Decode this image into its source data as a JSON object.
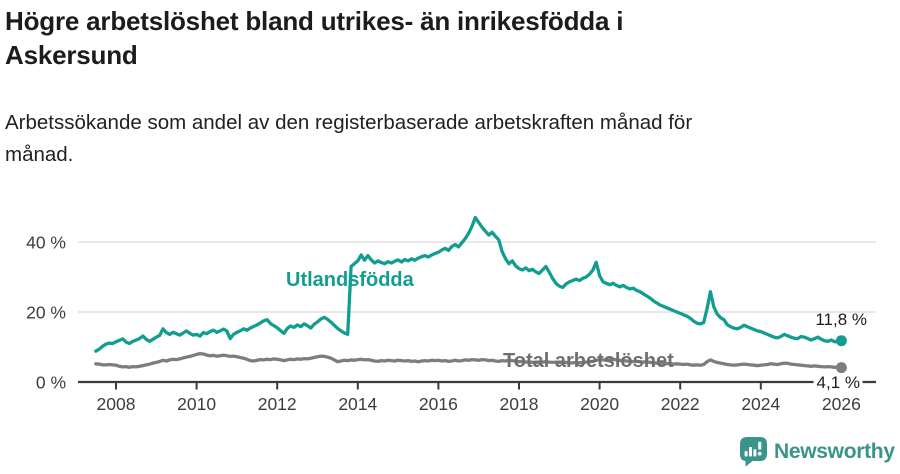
{
  "header": {
    "title_lines": [
      "Högre arbetslöshet bland utrikes- än inrikesfödda i",
      "Askersund"
    ],
    "subtitle_lines": [
      "Arbetssökande som andel av den registerbaserade arbetskraften månad för",
      "månad."
    ]
  },
  "chart_data": {
    "type": "line",
    "title": "Högre arbetslöshet bland utrikes- än inrikesfödda i Askersund",
    "subtitle": "Arbetssökande som andel av den registerbaserade arbetskraften månad för månad.",
    "unit": "%",
    "frequency": "monthly",
    "start": {
      "year": 2007,
      "month": 7
    },
    "x_axis": {
      "ticks": [
        2008,
        2010,
        2012,
        2014,
        2016,
        2018,
        2020,
        2022,
        2024,
        2026
      ]
    },
    "y_axis": {
      "range": [
        0,
        50
      ],
      "ticks": [
        {
          "label": "0 %",
          "value": 0
        },
        {
          "label": "20 %",
          "value": 20
        },
        {
          "label": "40 %",
          "value": 40
        }
      ]
    },
    "grid": "horizontal",
    "style": {
      "grid_color": "#d9d9d9",
      "axis_color": "#3b3b3b",
      "tick_text_color": "#3d3d3d"
    },
    "series": [
      {
        "name": "Utlandsfödda",
        "color": "#119d8f",
        "end_label": "11,8 %",
        "last_value": 11.8,
        "values": [
          8.8,
          9.4,
          10.2,
          10.8,
          11.1,
          11.0,
          11.5,
          11.9,
          12.3,
          11.4,
          11.0,
          11.6,
          12.0,
          12.4,
          13.1,
          12.2,
          11.6,
          12.2,
          12.8,
          13.3,
          15.2,
          14.1,
          13.6,
          14.2,
          13.8,
          13.4,
          14.0,
          14.6,
          13.9,
          13.4,
          13.6,
          13.1,
          14.1,
          13.8,
          14.4,
          14.8,
          14.2,
          14.6,
          15.1,
          14.6,
          12.4,
          13.6,
          14.2,
          14.6,
          15.2,
          14.8,
          15.4,
          15.9,
          16.3,
          16.9,
          17.5,
          17.8,
          16.7,
          16.1,
          15.5,
          14.7,
          13.9,
          15.3,
          16.0,
          15.6,
          16.3,
          15.8,
          16.6,
          16.1,
          15.4,
          16.5,
          17.2,
          18.0,
          18.5,
          17.9,
          17.1,
          16.2,
          15.3,
          14.6,
          14.0,
          13.6,
          33.0,
          33.8,
          34.6,
          36.3,
          34.8,
          36.1,
          34.9,
          34.0,
          34.6,
          34.1,
          33.8,
          34.4,
          34.0,
          34.5,
          34.9,
          34.3,
          35.0,
          34.6,
          35.2,
          34.8,
          35.4,
          35.8,
          36.1,
          35.7,
          36.3,
          36.7,
          37.1,
          37.7,
          38.2,
          37.6,
          38.7,
          39.3,
          38.6,
          39.8,
          41.0,
          42.5,
          44.5,
          47.0,
          45.6,
          44.2,
          43.1,
          42.0,
          42.8,
          41.6,
          40.6,
          37.2,
          35.2,
          33.8,
          34.6,
          33.2,
          32.4,
          32.0,
          32.6,
          31.8,
          32.2,
          31.5,
          31.0,
          32.0,
          33.0,
          31.4,
          29.6,
          28.2,
          27.4,
          27.0,
          28.0,
          28.6,
          29.0,
          29.4,
          29.0,
          29.6,
          30.0,
          30.8,
          32.0,
          34.2,
          30.4,
          28.6,
          28.2,
          27.8,
          28.2,
          27.6,
          27.2,
          27.6,
          27.0,
          26.6,
          26.8,
          26.2,
          25.8,
          25.2,
          24.6,
          24.0,
          23.2,
          22.6,
          22.0,
          21.6,
          21.2,
          20.8,
          20.4,
          20.0,
          19.6,
          19.2,
          18.8,
          18.2,
          17.4,
          16.8,
          16.6,
          17.0,
          21.0,
          25.8,
          21.5,
          19.5,
          18.4,
          17.8,
          16.4,
          15.8,
          15.4,
          15.2,
          15.6,
          16.2,
          15.8,
          15.4,
          15.0,
          14.6,
          14.4,
          14.0,
          13.6,
          13.2,
          12.8,
          12.6,
          13.0,
          13.6,
          13.2,
          12.8,
          12.5,
          12.4,
          13.0,
          12.8,
          12.4,
          12.0,
          12.4,
          12.8,
          12.2,
          11.8,
          11.6,
          12.0,
          11.5,
          11.6,
          11.8
        ]
      },
      {
        "name": "Total arbetslöshet",
        "color": "#7d7d7d",
        "label_color": "#6f6f6f",
        "end_label": "4,1 %",
        "last_value": 4.1,
        "values": [
          5.2,
          5.1,
          4.9,
          4.9,
          5.0,
          4.9,
          4.8,
          4.5,
          4.3,
          4.4,
          4.2,
          4.4,
          4.3,
          4.5,
          4.7,
          4.9,
          5.1,
          5.4,
          5.6,
          5.9,
          6.2,
          6.0,
          6.3,
          6.5,
          6.4,
          6.6,
          6.9,
          7.1,
          7.3,
          7.6,
          7.9,
          8.1,
          8.0,
          7.7,
          7.5,
          7.6,
          7.4,
          7.5,
          7.7,
          7.5,
          7.3,
          7.4,
          7.2,
          7.0,
          6.8,
          6.5,
          6.1,
          6.0,
          6.2,
          6.4,
          6.3,
          6.5,
          6.4,
          6.6,
          6.5,
          6.3,
          6.1,
          6.3,
          6.5,
          6.4,
          6.6,
          6.5,
          6.7,
          6.6,
          6.8,
          7.0,
          7.2,
          7.4,
          7.3,
          7.1,
          6.8,
          6.3,
          5.8,
          6.0,
          6.2,
          6.1,
          6.3,
          6.2,
          6.4,
          6.5,
          6.3,
          6.4,
          6.2,
          6.0,
          5.9,
          6.1,
          6.0,
          6.2,
          6.1,
          6.0,
          6.2,
          6.1,
          6.0,
          6.1,
          5.9,
          6.0,
          5.8,
          6.0,
          6.1,
          6.0,
          6.2,
          6.1,
          6.2,
          6.0,
          6.1,
          5.9,
          6.0,
          6.2,
          6.0,
          6.1,
          6.3,
          6.2,
          6.4,
          6.3,
          6.2,
          6.4,
          6.3,
          6.1,
          6.2,
          6.0,
          5.9,
          6.1,
          6.0,
          6.2,
          6.1,
          6.0,
          5.8,
          5.9,
          5.7,
          5.8,
          5.6,
          5.7,
          5.5,
          5.7,
          5.8,
          5.7,
          5.6,
          5.7,
          5.6,
          5.5,
          5.6,
          5.4,
          5.5,
          5.6,
          5.5,
          5.6,
          5.7,
          5.8,
          5.9,
          6.2,
          6.4,
          6.3,
          6.2,
          6.4,
          6.5,
          6.3,
          6.2,
          6.1,
          6.0,
          5.9,
          5.8,
          5.9,
          5.8,
          5.7,
          5.8,
          5.6,
          5.5,
          5.4,
          5.3,
          5.4,
          5.2,
          5.3,
          5.1,
          5.2,
          5.1,
          5.0,
          5.1,
          4.9,
          4.8,
          4.9,
          4.8,
          5.0,
          5.8,
          6.3,
          5.9,
          5.6,
          5.4,
          5.2,
          5.0,
          4.9,
          4.8,
          4.9,
          5.0,
          5.1,
          5.0,
          4.9,
          4.8,
          4.7,
          4.8,
          4.9,
          5.0,
          5.2,
          5.1,
          5.0,
          5.2,
          5.4,
          5.3,
          5.1,
          5.0,
          4.9,
          4.8,
          4.7,
          4.6,
          4.5,
          4.6,
          4.5,
          4.4,
          4.3,
          4.4,
          4.3,
          4.2,
          4.2,
          4.1
        ]
      }
    ]
  },
  "footer": {
    "brand": "Newsworthy",
    "brand_color": "#3a9489"
  }
}
